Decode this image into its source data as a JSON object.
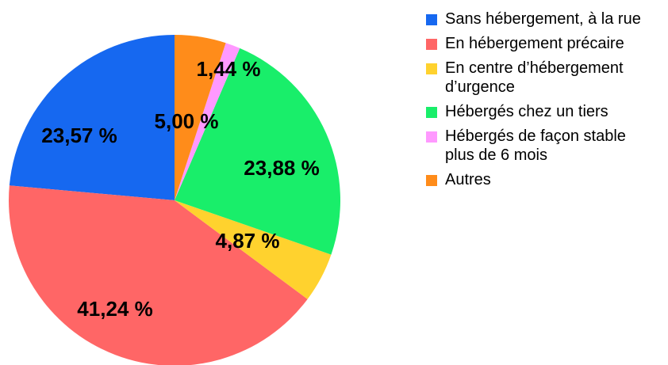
{
  "chart_data": {
    "type": "pie",
    "categories": [
      "Sans hébergement, à la rue",
      "En hébergement précaire",
      "En centre d’héber­gement d’urgence",
      "Hébergés chez un tiers",
      "Hébergés de façon stable plus de 6 mois",
      "Autres"
    ],
    "values": [
      23.57,
      41.24,
      4.87,
      23.88,
      1.44,
      5.0
    ],
    "value_labels": [
      "23,57 %",
      "41,24 %",
      "4,87 %",
      "23,88 %",
      "1,44 %",
      "5,00 %"
    ],
    "colors": [
      "#1668f0",
      "#ff6666",
      "#ffd22e",
      "#19ee6a",
      "#ff99ff",
      "#ff8c1a"
    ],
    "legend": "right"
  }
}
